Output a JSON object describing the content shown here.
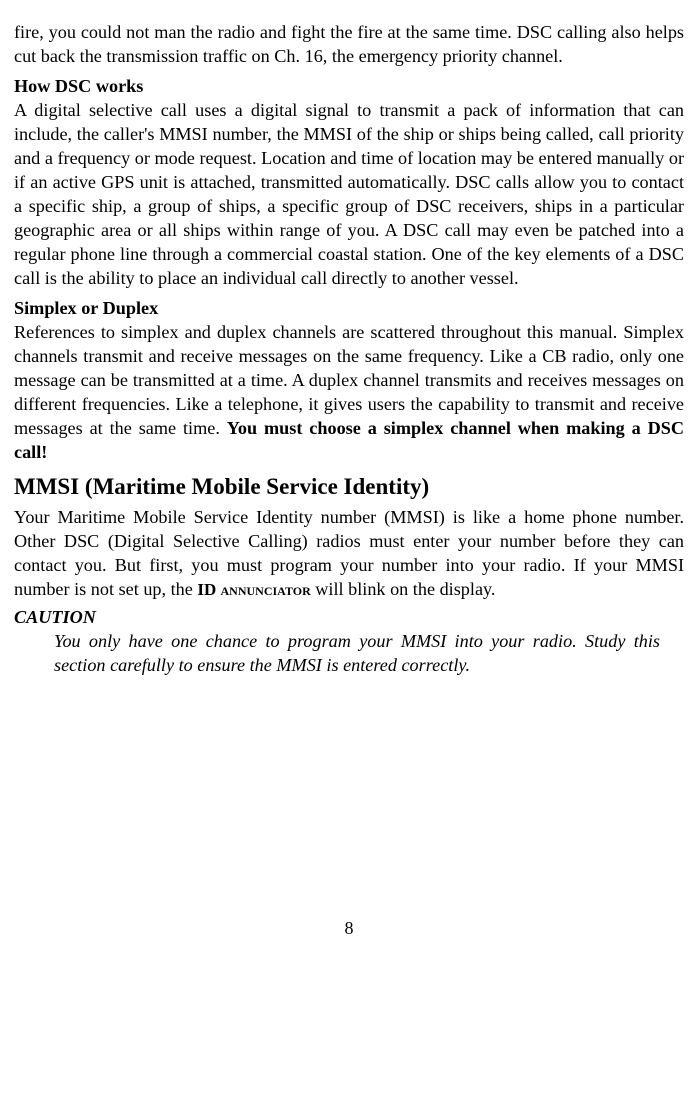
{
  "intro": "fire, you could not man the radio and fight the fire at the same time. DSC calling also helps cut back the transmission traffic on Ch. 16, the emergency priority channel.",
  "h1": "How DSC works",
  "p1": " A digital selective call uses a digital signal to transmit a pack of information that can include, the caller's MMSI number, the MMSI of the ship or ships being called, call priority and a frequency or mode request. Location and time of location may be entered manually or if an active GPS unit is attached, transmitted automatically. DSC calls allow you to contact a specific ship, a group of ships, a specific group of DSC receivers, ships in a particular geographic area or all ships within range of you. A DSC call may even be patched into a regular phone line through a commercial coastal station. One of the key elements of a DSC call is the ability to place an individual call directly to another vessel.",
  "h2": "Simplex or Duplex",
  "p2a": "References to simplex and duplex channels are scattered throughout this manual. Simplex channels transmit and receive messages on the same frequency. Like a CB radio, only one message can be transmitted at a time. A duplex channel transmits and receives messages on different frequencies. Like a telephone, it gives users the capability to transmit and receive messages at the same time. ",
  "p2b": "You must choose a simplex channel when making a DSC call!",
  "h3": "MMSI (Maritime Mobile Service Identity)",
  "p3a": "Your Maritime Mobile Service Identity number (MMSI) is like a home phone number. Other DSC (Digital Selective Calling) radios must enter your number before they can contact you. But first, you must program your number into your radio. If your MMSI number is not set up, the ",
  "p3b": "ID annunciator",
  "p3c": " will blink on the display.",
  "caution_h": "CAUTION",
  "caution_b": "You only have one chance to program your MMSI into your radio. Study this section carefully to ensure the MMSI is entered correctly.",
  "pagenum": "8"
}
